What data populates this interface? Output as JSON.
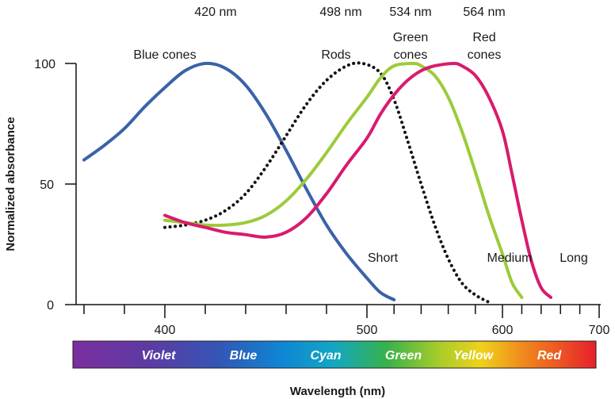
{
  "chart_data": {
    "type": "line",
    "xlabel": "Wavelength (nm)",
    "ylabel": "Normalized absorbance",
    "x_ticks": [
      400,
      500,
      600,
      700
    ],
    "y_ticks": [
      0,
      50,
      100
    ],
    "xlim": [
      360,
      700
    ],
    "ylim": [
      0,
      100
    ],
    "grid": false,
    "peak_labels": [
      {
        "text": "420 nm",
        "x": 420
      },
      {
        "text": "498 nm",
        "x": 498
      },
      {
        "text": "534 nm",
        "x": 534
      },
      {
        "text": "564 nm",
        "x": 564
      }
    ],
    "series": [
      {
        "name": "Blue cones",
        "color": "#3b62a8",
        "style": "solid",
        "end_label": "Short",
        "points": [
          [
            360,
            60
          ],
          [
            370,
            66
          ],
          [
            380,
            73
          ],
          [
            390,
            82
          ],
          [
            400,
            90
          ],
          [
            410,
            97
          ],
          [
            420,
            100
          ],
          [
            430,
            98
          ],
          [
            440,
            91
          ],
          [
            450,
            79
          ],
          [
            460,
            64
          ],
          [
            470,
            48
          ],
          [
            480,
            33
          ],
          [
            490,
            21
          ],
          [
            500,
            11
          ],
          [
            510,
            5
          ],
          [
            520,
            2
          ]
        ]
      },
      {
        "name": "Rods",
        "color": "#111111",
        "style": "dotted",
        "end_label": "Medium",
        "points": [
          [
            400,
            32
          ],
          [
            410,
            33
          ],
          [
            420,
            35
          ],
          [
            430,
            39
          ],
          [
            440,
            46
          ],
          [
            450,
            57
          ],
          [
            460,
            70
          ],
          [
            470,
            83
          ],
          [
            480,
            93
          ],
          [
            490,
            99
          ],
          [
            498,
            100
          ],
          [
            510,
            96
          ],
          [
            520,
            85
          ],
          [
            530,
            68
          ],
          [
            540,
            50
          ],
          [
            550,
            33
          ],
          [
            560,
            19
          ],
          [
            570,
            9
          ],
          [
            580,
            4
          ],
          [
            590,
            1
          ]
        ]
      },
      {
        "name": "Green cones",
        "color": "#9ccb3b",
        "style": "solid",
        "end_label": "Medium",
        "points": [
          [
            400,
            35
          ],
          [
            410,
            34
          ],
          [
            420,
            33
          ],
          [
            430,
            33
          ],
          [
            440,
            34
          ],
          [
            450,
            37
          ],
          [
            460,
            43
          ],
          [
            470,
            52
          ],
          [
            480,
            63
          ],
          [
            490,
            75
          ],
          [
            500,
            86
          ],
          [
            510,
            94
          ],
          [
            520,
            99
          ],
          [
            534,
            100
          ],
          [
            540,
            99
          ],
          [
            550,
            95
          ],
          [
            560,
            86
          ],
          [
            570,
            72
          ],
          [
            580,
            55
          ],
          [
            590,
            37
          ],
          [
            600,
            21
          ],
          [
            610,
            9
          ],
          [
            620,
            3
          ]
        ]
      },
      {
        "name": "Red cones",
        "color": "#d81b6e",
        "style": "solid",
        "end_label": "Long",
        "points": [
          [
            400,
            37
          ],
          [
            410,
            34
          ],
          [
            420,
            32
          ],
          [
            430,
            30
          ],
          [
            440,
            29
          ],
          [
            450,
            28
          ],
          [
            460,
            30
          ],
          [
            470,
            36
          ],
          [
            480,
            46
          ],
          [
            490,
            58
          ],
          [
            500,
            69
          ],
          [
            510,
            79
          ],
          [
            520,
            87
          ],
          [
            530,
            93
          ],
          [
            540,
            97
          ],
          [
            550,
            99
          ],
          [
            564,
            100
          ],
          [
            570,
            99
          ],
          [
            580,
            95
          ],
          [
            590,
            86
          ],
          [
            600,
            72
          ],
          [
            610,
            54
          ],
          [
            620,
            35
          ],
          [
            630,
            18
          ],
          [
            640,
            7
          ],
          [
            650,
            3
          ]
        ]
      }
    ],
    "spectrum_band": [
      "Violet",
      "Blue",
      "Cyan",
      "Green",
      "Yellow",
      "Red"
    ]
  }
}
